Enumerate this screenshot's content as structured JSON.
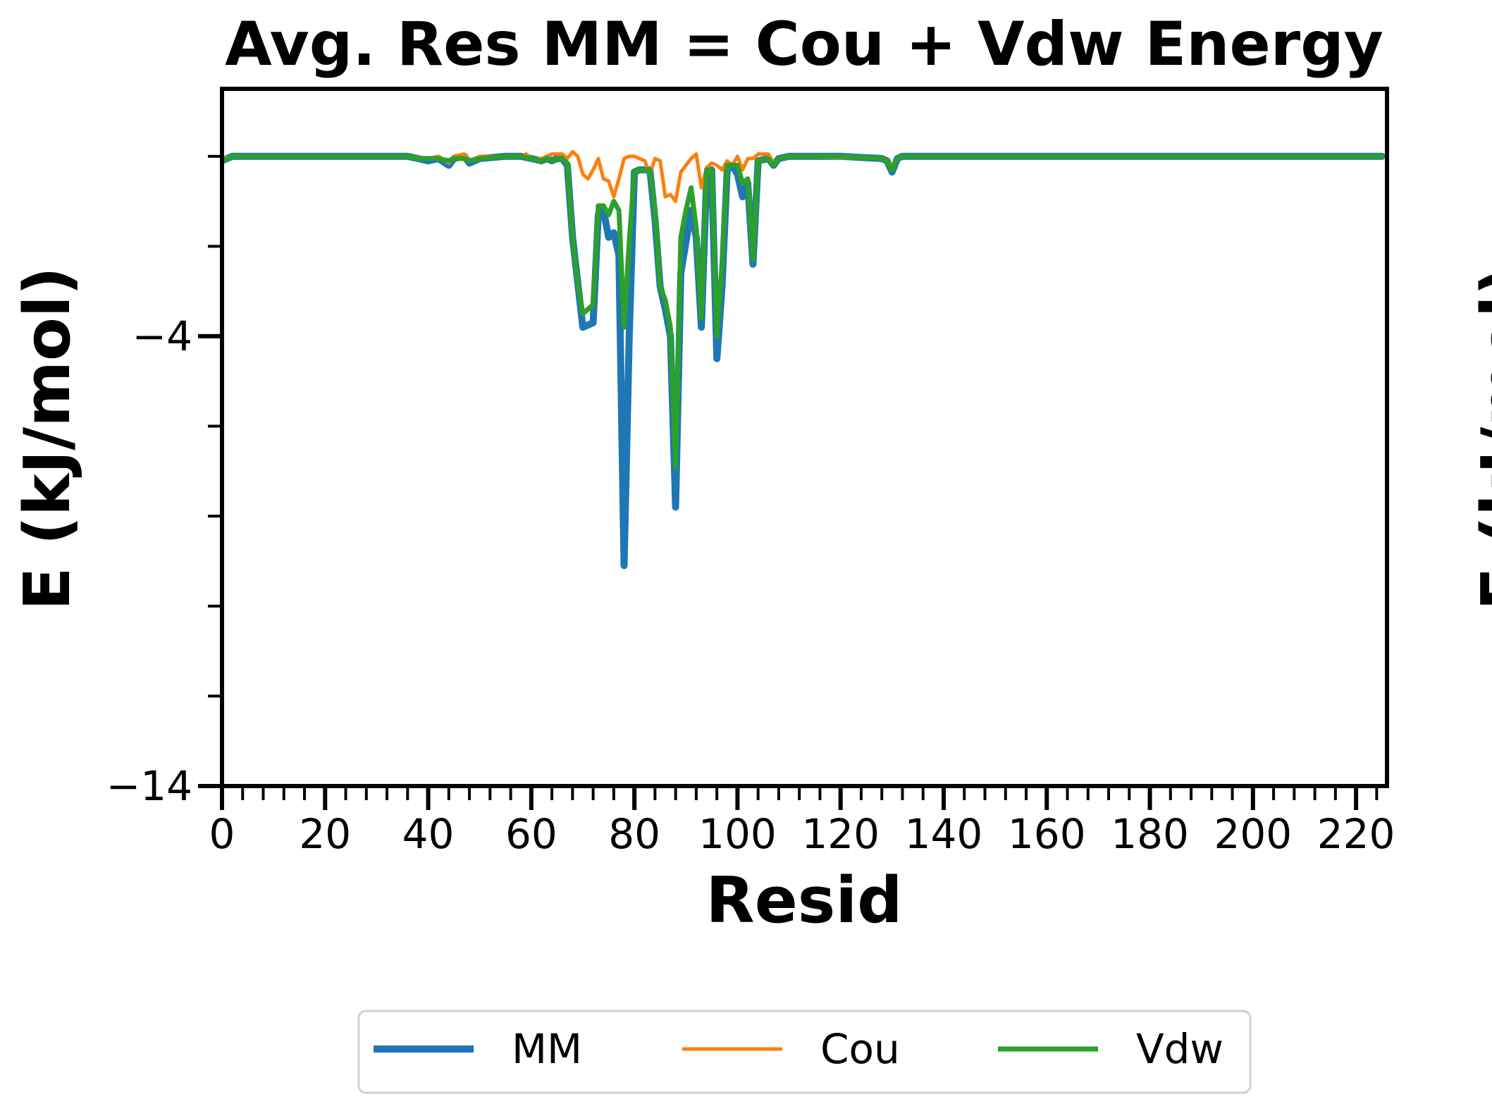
{
  "chart_data": {
    "type": "line",
    "title": "Avg. Res MM = Cou + Vdw Energy",
    "xlabel": "Resid",
    "ylabel": "E (kJ/mol)",
    "xlim": [
      0,
      226
    ],
    "ylim": [
      -14,
      1.5
    ],
    "x_ticks": [
      0,
      20,
      40,
      60,
      80,
      100,
      120,
      140,
      160,
      180,
      200,
      220
    ],
    "x_tick_labels": [
      "0",
      "20",
      "40",
      "60",
      "80",
      "100",
      "120",
      "140",
      "160",
      "180",
      "200",
      "220"
    ],
    "x_minor_step": 4,
    "y_ticks": [
      -14,
      -4
    ],
    "y_tick_labels": [
      "−14",
      "−4"
    ],
    "y_minor_step": 2,
    "grid": false,
    "legend_position": "bottom-center",
    "second_panel_ylabel": "E (kJ/mol)",
    "series": [
      {
        "name": "MM",
        "color": "#1f77b4",
        "points": [
          [
            0,
            -0.1
          ],
          [
            2,
            0
          ],
          [
            10,
            0
          ],
          [
            20,
            0
          ],
          [
            30,
            0
          ],
          [
            36,
            0
          ],
          [
            38,
            -0.05
          ],
          [
            40,
            -0.1
          ],
          [
            42,
            -0.05
          ],
          [
            44,
            -0.2
          ],
          [
            45,
            -0.05
          ],
          [
            47,
            0
          ],
          [
            48,
            -0.15
          ],
          [
            50,
            -0.05
          ],
          [
            55,
            0
          ],
          [
            58,
            0
          ],
          [
            60,
            -0.05
          ],
          [
            62,
            -0.1
          ],
          [
            63,
            -0.05
          ],
          [
            64,
            -0.1
          ],
          [
            65,
            -0.05
          ],
          [
            66,
            -0.05
          ],
          [
            67,
            -0.2
          ],
          [
            68,
            -1.8
          ],
          [
            69,
            -2.8
          ],
          [
            70,
            -3.8
          ],
          [
            72,
            -3.7
          ],
          [
            73,
            -1.3
          ],
          [
            74,
            -1.2
          ],
          [
            75,
            -1.8
          ],
          [
            76,
            -1.7
          ],
          [
            77,
            -2.2
          ],
          [
            78,
            -9.1
          ],
          [
            79,
            -4.0
          ],
          [
            80,
            -0.35
          ],
          [
            81,
            -0.3
          ],
          [
            82,
            -0.3
          ],
          [
            83,
            -0.3
          ],
          [
            84,
            -1.4
          ],
          [
            85,
            -2.9
          ],
          [
            86,
            -3.4
          ],
          [
            87,
            -4.0
          ],
          [
            88,
            -7.8
          ],
          [
            89,
            -2.6
          ],
          [
            90,
            -1.9
          ],
          [
            91,
            -1.2
          ],
          [
            92,
            -1.8
          ],
          [
            93,
            -3.8
          ],
          [
            94,
            -0.5
          ],
          [
            95,
            -0.3
          ],
          [
            96,
            -4.5
          ],
          [
            97,
            -2.9
          ],
          [
            98,
            -0.3
          ],
          [
            99,
            -0.2
          ],
          [
            100,
            -0.4
          ],
          [
            101,
            -0.9
          ],
          [
            102,
            -0.6
          ],
          [
            103,
            -2.4
          ],
          [
            104,
            -0.1
          ],
          [
            106,
            -0.05
          ],
          [
            107,
            -0.2
          ],
          [
            108,
            -0.05
          ],
          [
            110,
            0
          ],
          [
            120,
            0
          ],
          [
            128,
            -0.05
          ],
          [
            129,
            -0.1
          ],
          [
            130,
            -0.35
          ],
          [
            131,
            -0.05
          ],
          [
            132,
            0
          ],
          [
            140,
            0
          ],
          [
            160,
            0
          ],
          [
            180,
            0
          ],
          [
            200,
            0
          ],
          [
            220,
            0
          ],
          [
            225,
            0
          ]
        ]
      },
      {
        "name": "Cou",
        "color": "#ff7f0e",
        "points": [
          [
            0,
            -0.05
          ],
          [
            2,
            0
          ],
          [
            20,
            0
          ],
          [
            36,
            0
          ],
          [
            40,
            -0.05
          ],
          [
            42,
            0
          ],
          [
            44,
            -0.15
          ],
          [
            45,
            0
          ],
          [
            47,
            0.05
          ],
          [
            48,
            -0.1
          ],
          [
            50,
            0
          ],
          [
            58,
            0
          ],
          [
            59,
            0.05
          ],
          [
            60,
            -0.05
          ],
          [
            62,
            -0.05
          ],
          [
            64,
            0.05
          ],
          [
            66,
            0.05
          ],
          [
            67,
            -0.05
          ],
          [
            68,
            0.1
          ],
          [
            69,
            0
          ],
          [
            70,
            -0.4
          ],
          [
            71,
            -0.5
          ],
          [
            72,
            -0.3
          ],
          [
            73,
            -0.05
          ],
          [
            74,
            -0.5
          ],
          [
            75,
            -0.55
          ],
          [
            76,
            -0.9
          ],
          [
            77,
            -0.5
          ],
          [
            78,
            -0.05
          ],
          [
            79,
            0
          ],
          [
            80,
            0
          ],
          [
            81,
            -0.05
          ],
          [
            82,
            -0.1
          ],
          [
            83,
            -0.4
          ],
          [
            84,
            -0.05
          ],
          [
            85,
            -0.1
          ],
          [
            86,
            -0.9
          ],
          [
            87,
            -0.85
          ],
          [
            88,
            -1.0
          ],
          [
            89,
            -0.35
          ],
          [
            90,
            -0.2
          ],
          [
            91,
            -0.05
          ],
          [
            92,
            0.05
          ],
          [
            93,
            -0.7
          ],
          [
            94,
            -0.25
          ],
          [
            95,
            -0.15
          ],
          [
            96,
            -0.2
          ],
          [
            97,
            -0.3
          ],
          [
            98,
            -0.1
          ],
          [
            99,
            -0.2
          ],
          [
            100,
            0
          ],
          [
            101,
            -0.3
          ],
          [
            102,
            -0.05
          ],
          [
            103,
            -0.05
          ],
          [
            104,
            0.05
          ],
          [
            106,
            0.05
          ],
          [
            107,
            -0.15
          ],
          [
            108,
            -0.05
          ],
          [
            110,
            0
          ],
          [
            128,
            -0.05
          ],
          [
            130,
            -0.2
          ],
          [
            131,
            -0.05
          ],
          [
            132,
            0
          ],
          [
            160,
            0
          ],
          [
            200,
            0
          ],
          [
            225,
            0
          ]
        ]
      },
      {
        "name": "Vdw",
        "color": "#2ca02c",
        "points": [
          [
            0,
            -0.1
          ],
          [
            2,
            0
          ],
          [
            10,
            0
          ],
          [
            20,
            0
          ],
          [
            30,
            0
          ],
          [
            36,
            0
          ],
          [
            38,
            -0.05
          ],
          [
            40,
            -0.05
          ],
          [
            42,
            -0.05
          ],
          [
            44,
            -0.1
          ],
          [
            45,
            -0.05
          ],
          [
            47,
            -0.05
          ],
          [
            48,
            -0.1
          ],
          [
            50,
            -0.05
          ],
          [
            55,
            0
          ],
          [
            58,
            0
          ],
          [
            60,
            -0.05
          ],
          [
            62,
            -0.1
          ],
          [
            63,
            -0.05
          ],
          [
            64,
            -0.1
          ],
          [
            65,
            -0.05
          ],
          [
            66,
            -0.05
          ],
          [
            67,
            -0.15
          ],
          [
            68,
            -1.8
          ],
          [
            69,
            -2.8
          ],
          [
            70,
            -3.5
          ],
          [
            72,
            -3.3
          ],
          [
            73,
            -1.1
          ],
          [
            74,
            -1.1
          ],
          [
            75,
            -1.3
          ],
          [
            76,
            -1.0
          ],
          [
            77,
            -1.2
          ],
          [
            78,
            -3.8
          ],
          [
            79,
            -1.9
          ],
          [
            80,
            -0.35
          ],
          [
            81,
            -0.3
          ],
          [
            82,
            -0.3
          ],
          [
            83,
            -0.3
          ],
          [
            84,
            -1.2
          ],
          [
            85,
            -2.9
          ],
          [
            86,
            -3.2
          ],
          [
            87,
            -3.8
          ],
          [
            88,
            -6.9
          ],
          [
            89,
            -1.8
          ],
          [
            90,
            -1.2
          ],
          [
            91,
            -0.7
          ],
          [
            92,
            -1.6
          ],
          [
            93,
            -3.6
          ],
          [
            94,
            -0.3
          ],
          [
            95,
            -0.3
          ],
          [
            96,
            -4.0
          ],
          [
            97,
            -2.4
          ],
          [
            98,
            -0.2
          ],
          [
            99,
            -0.2
          ],
          [
            100,
            -0.2
          ],
          [
            101,
            -0.6
          ],
          [
            102,
            -0.5
          ],
          [
            103,
            -2.3
          ],
          [
            104,
            -0.1
          ],
          [
            106,
            -0.05
          ],
          [
            107,
            -0.2
          ],
          [
            108,
            -0.05
          ],
          [
            110,
            0
          ],
          [
            120,
            0
          ],
          [
            128,
            -0.05
          ],
          [
            129,
            -0.1
          ],
          [
            130,
            -0.3
          ],
          [
            131,
            -0.05
          ],
          [
            132,
            0
          ],
          [
            140,
            0
          ],
          [
            160,
            0
          ],
          [
            180,
            0
          ],
          [
            200,
            0
          ],
          [
            220,
            0
          ],
          [
            225,
            0
          ]
        ]
      }
    ]
  }
}
